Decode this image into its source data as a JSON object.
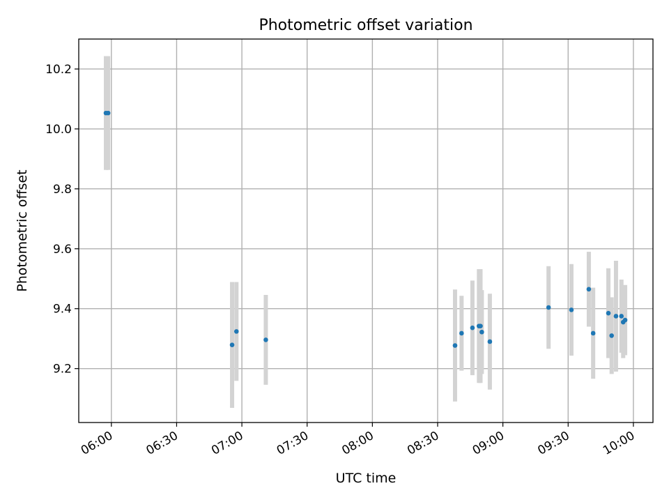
{
  "chart_data": {
    "type": "scatter",
    "title": "Photometric offset variation",
    "xlabel": "UTC time",
    "ylabel": "Photometric offset",
    "x_unit": "UTC",
    "xlim": [
      "05:45",
      "10:09"
    ],
    "ylim": [
      9.02,
      10.3
    ],
    "x_ticks": [
      "06:00",
      "06:30",
      "07:00",
      "07:30",
      "08:00",
      "08:30",
      "09:00",
      "09:30",
      "10:00"
    ],
    "y_ticks": [
      9.2,
      9.4,
      9.6,
      9.8,
      10.0,
      10.2
    ],
    "y_tick_labels": [
      "9.2",
      "9.4",
      "9.6",
      "9.8",
      "10.0",
      "10.2"
    ],
    "grid": true,
    "legend": "none",
    "colors": {
      "marker": "#1f77b4",
      "errorbar": "#d3d3d3"
    },
    "points": [
      {
        "time": "05:57.5",
        "y": 10.053,
        "err": 0.19
      },
      {
        "time": "05:58.5",
        "y": 10.053,
        "err": 0.19
      },
      {
        "time": "06:55.5",
        "y": 9.279,
        "err": 0.21
      },
      {
        "time": "06:57.5",
        "y": 9.324,
        "err": 0.165
      },
      {
        "time": "07:11",
        "y": 9.296,
        "err": 0.15
      },
      {
        "time": "08:38",
        "y": 9.277,
        "err": 0.187
      },
      {
        "time": "08:41",
        "y": 9.318,
        "err": 0.125
      },
      {
        "time": "08:46",
        "y": 9.336,
        "err": 0.158
      },
      {
        "time": "08:49",
        "y": 9.342,
        "err": 0.19
      },
      {
        "time": "08:49.7",
        "y": 9.342,
        "err": 0.19
      },
      {
        "time": "08:50.3",
        "y": 9.322,
        "err": 0.14
      },
      {
        "time": "08:54",
        "y": 9.29,
        "err": 0.16
      },
      {
        "time": "09:21",
        "y": 9.404,
        "err": 0.138
      },
      {
        "time": "09:31.5",
        "y": 9.396,
        "err": 0.153
      },
      {
        "time": "09:39.5",
        "y": 9.465,
        "err": 0.125
      },
      {
        "time": "09:41.5",
        "y": 9.318,
        "err": 0.152
      },
      {
        "time": "09:48.5",
        "y": 9.385,
        "err": 0.15
      },
      {
        "time": "09:50",
        "y": 9.31,
        "err": 0.128
      },
      {
        "time": "09:52",
        "y": 9.375,
        "err": 0.185
      },
      {
        "time": "09:54.5",
        "y": 9.375,
        "err": 0.122
      },
      {
        "time": "09:55.3",
        "y": 9.355,
        "err": 0.12
      },
      {
        "time": "09:56.2",
        "y": 9.362,
        "err": 0.117
      }
    ]
  }
}
